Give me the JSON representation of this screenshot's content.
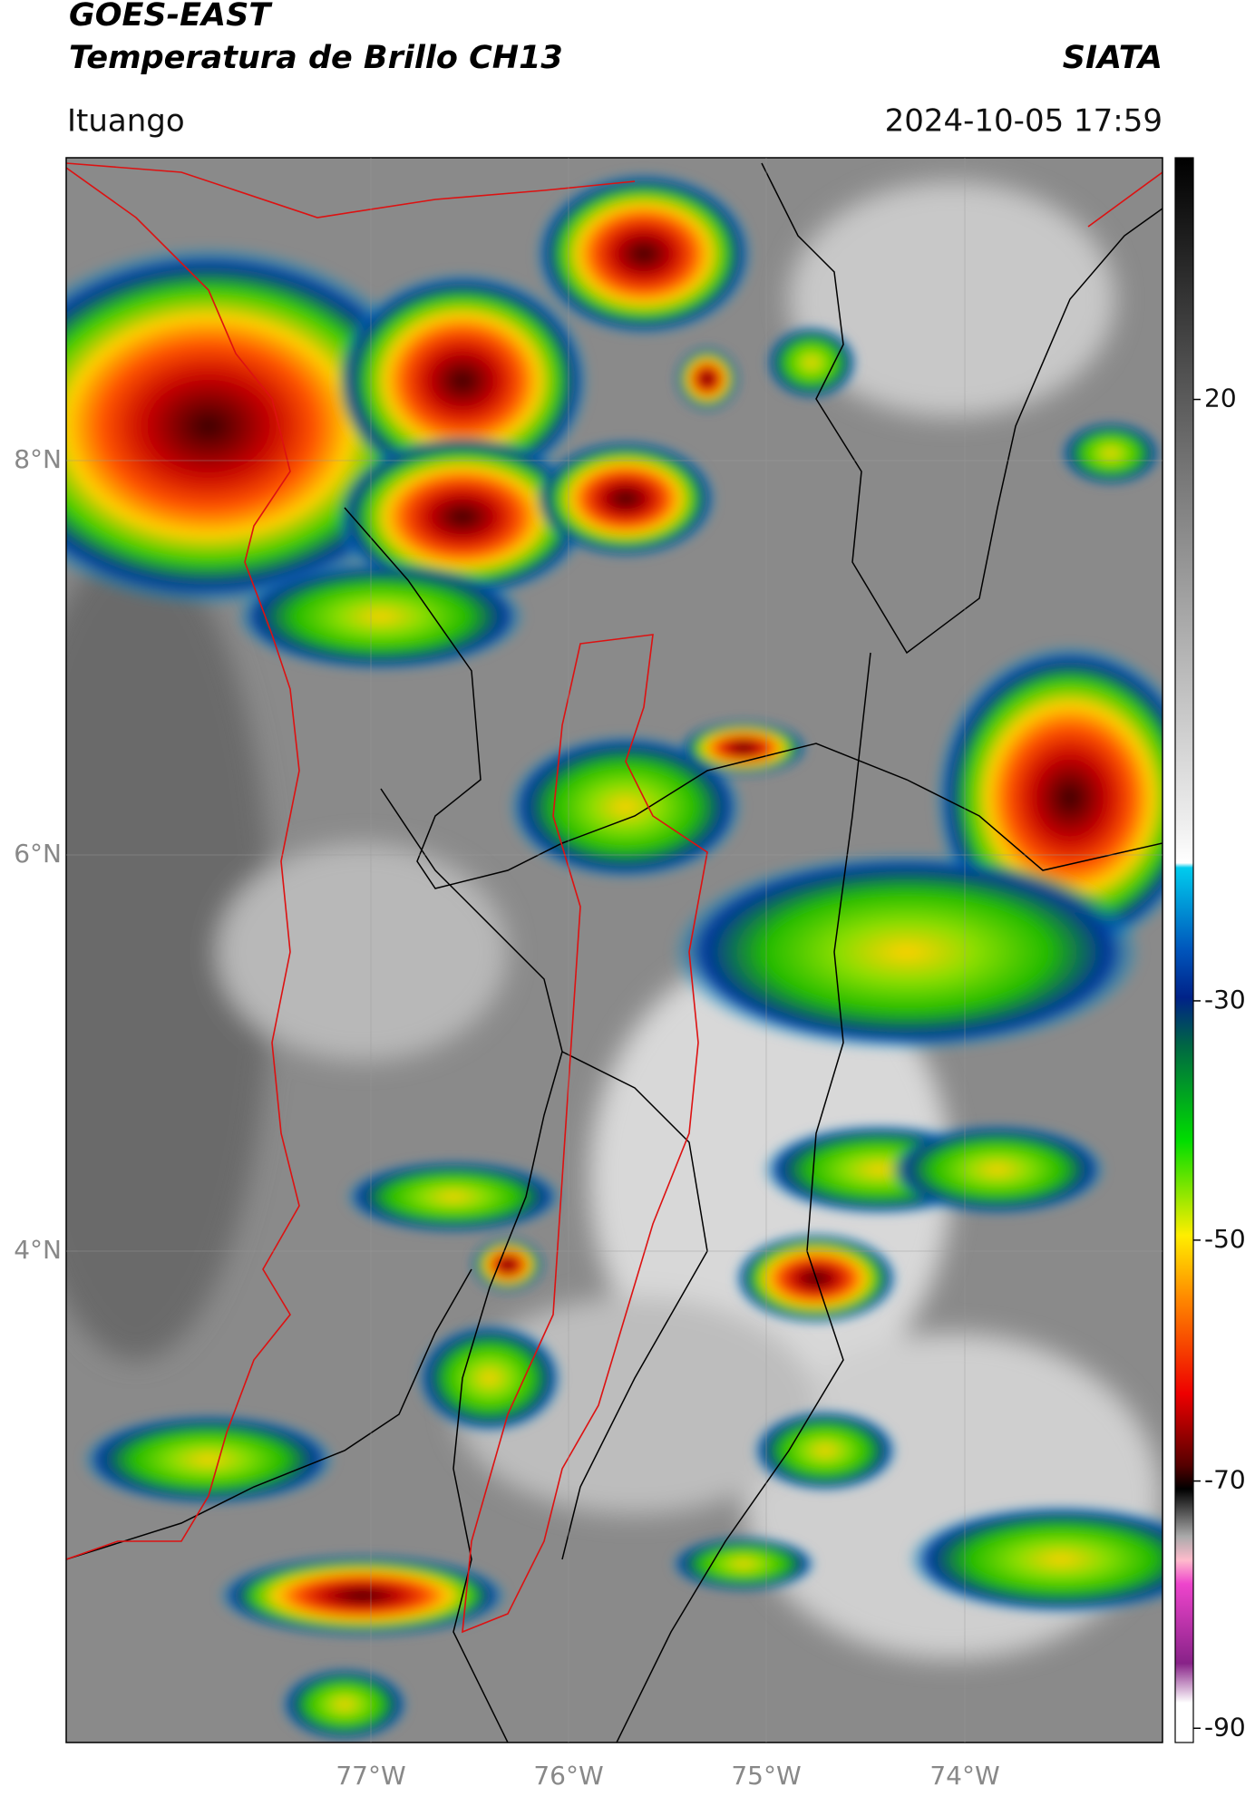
{
  "header": {
    "title": "GOES-EAST",
    "subtitle": "Temperatura de Brillo CH13",
    "source": "SIATA",
    "location": "Ituango",
    "datetime": "2024-10-05 17:59"
  },
  "map": {
    "lat_labels": [
      "8°N",
      "6°N",
      "4°N"
    ],
    "lon_labels": [
      "77°W",
      "76°W",
      "75°W",
      "74°W"
    ]
  },
  "colorbar": {
    "ticks": [
      20,
      -30,
      -50,
      -70,
      -90
    ]
  }
}
